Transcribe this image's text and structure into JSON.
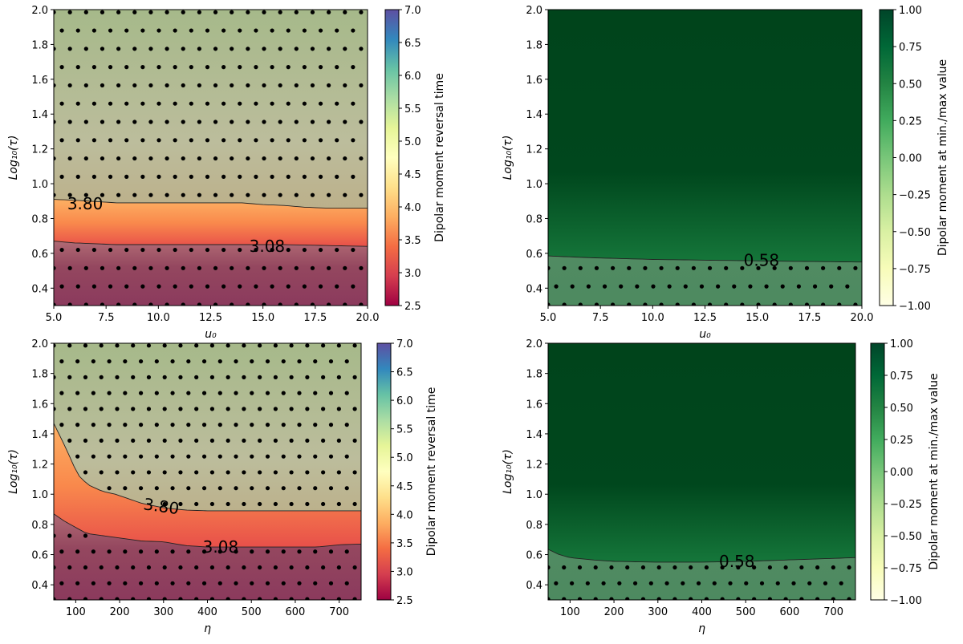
{
  "chart_data": [
    {
      "type": "heatmap",
      "subtype": "filled-contour-with-stippling",
      "xlabel": "u₀",
      "ylabel": "Log₁₀(τ)",
      "xlim": [
        5.0,
        20.0
      ],
      "ylim": [
        0.3,
        2.0
      ],
      "xticks": [
        "5.0",
        "7.5",
        "10.0",
        "12.5",
        "15.0",
        "17.5",
        "20.0"
      ],
      "xtick_values": [
        5.0,
        7.5,
        10.0,
        12.5,
        15.0,
        17.5,
        20.0
      ],
      "yticks": [
        "0.4",
        "0.6",
        "0.8",
        "1.0",
        "1.2",
        "1.4",
        "1.6",
        "1.8",
        "2.0"
      ],
      "ytick_values": [
        0.4,
        0.6,
        0.8,
        1.0,
        1.2,
        1.4,
        1.6,
        1.8,
        2.0
      ],
      "colorbar": {
        "label": "Dipolar moment reversal time",
        "range": [
          2.5,
          7.0
        ],
        "colormap": "Spectral",
        "ticks": [
          "2.5",
          "3.0",
          "3.5",
          "4.0",
          "4.5",
          "5.0",
          "5.5",
          "6.0",
          "6.5",
          "7.0"
        ],
        "tick_values": [
          2.5,
          3.0,
          3.5,
          4.0,
          4.5,
          5.0,
          5.5,
          6.0,
          6.5,
          7.0
        ]
      },
      "contours": [
        {
          "label": "3.80",
          "level": 3.8,
          "x": [
            5,
            6,
            8,
            10,
            12,
            14,
            15,
            16,
            17,
            18,
            19,
            20
          ],
          "y": [
            0.91,
            0.905,
            0.89,
            0.89,
            0.89,
            0.89,
            0.88,
            0.875,
            0.865,
            0.86,
            0.86,
            0.86
          ],
          "label_at": [
            6.5,
            0.885
          ]
        },
        {
          "label": "3.08",
          "level": 3.08,
          "x": [
            5,
            6,
            7,
            8,
            10,
            12,
            14,
            16,
            18,
            20
          ],
          "y": [
            0.67,
            0.66,
            0.655,
            0.65,
            0.65,
            0.65,
            0.65,
            0.65,
            0.645,
            0.64
          ],
          "label_at": [
            15.2,
            0.64
          ]
        }
      ],
      "stippling": "outside the 3.08–3.80 band"
    },
    {
      "type": "heatmap",
      "subtype": "filled-contour-with-stippling",
      "xlabel": "u₀",
      "ylabel": "Log₁₀(τ)",
      "xlim": [
        5.0,
        20.0
      ],
      "ylim": [
        0.3,
        2.0
      ],
      "xticks": [
        "5.0",
        "7.5",
        "10.0",
        "12.5",
        "15.0",
        "17.5",
        "20.0"
      ],
      "xtick_values": [
        5.0,
        7.5,
        10.0,
        12.5,
        15.0,
        17.5,
        20.0
      ],
      "yticks": [
        "0.4",
        "0.6",
        "0.8",
        "1.0",
        "1.2",
        "1.4",
        "1.6",
        "1.8",
        "2.0"
      ],
      "ytick_values": [
        0.4,
        0.6,
        0.8,
        1.0,
        1.2,
        1.4,
        1.6,
        1.8,
        2.0
      ],
      "colorbar": {
        "label": "Dipolar moment at min./max value",
        "range": [
          -1.0,
          1.0
        ],
        "colormap": "YlGn",
        "ticks": [
          "−1.00",
          "−0.75",
          "−0.50",
          "−0.25",
          "0.00",
          "0.25",
          "0.50",
          "0.75",
          "1.00"
        ],
        "tick_values": [
          -1.0,
          -0.75,
          -0.5,
          -0.25,
          0.0,
          0.25,
          0.5,
          0.75,
          1.0
        ]
      },
      "contours": [
        {
          "label": "0.58",
          "level": 0.58,
          "x": [
            5,
            7,
            10,
            13,
            16,
            20
          ],
          "y": [
            0.585,
            0.575,
            0.565,
            0.56,
            0.555,
            0.55
          ],
          "label_at": [
            15.2,
            0.56
          ]
        }
      ],
      "stippling": "below the 0.58 contour"
    },
    {
      "type": "heatmap",
      "subtype": "filled-contour-with-stippling",
      "xlabel": "η",
      "ylabel": "Log₁₀(τ)",
      "xlim": [
        50,
        750
      ],
      "ylim": [
        0.3,
        2.0
      ],
      "xticks": [
        "100",
        "200",
        "300",
        "400",
        "500",
        "600",
        "700"
      ],
      "xtick_values": [
        100,
        200,
        300,
        400,
        500,
        600,
        700
      ],
      "yticks": [
        "0.4",
        "0.6",
        "0.8",
        "1.0",
        "1.2",
        "1.4",
        "1.6",
        "1.8",
        "2.0"
      ],
      "ytick_values": [
        0.4,
        0.6,
        0.8,
        1.0,
        1.2,
        1.4,
        1.6,
        1.8,
        2.0
      ],
      "colorbar": {
        "label": "Dipolar moment reversal time",
        "range": [
          2.5,
          7.0
        ],
        "colormap": "Spectral",
        "ticks": [
          "2.5",
          "3.0",
          "3.5",
          "4.0",
          "4.5",
          "5.0",
          "5.5",
          "6.0",
          "6.5",
          "7.0"
        ],
        "tick_values": [
          2.5,
          3.0,
          3.5,
          4.0,
          4.5,
          5.0,
          5.5,
          6.0,
          6.5,
          7.0
        ]
      },
      "contours": [
        {
          "label": "3.80",
          "level": 3.8,
          "x": [
            50,
            65,
            80,
            95,
            110,
            130,
            160,
            190,
            220,
            250,
            300,
            350,
            400,
            500,
            600,
            700,
            750
          ],
          "y": [
            1.47,
            1.38,
            1.29,
            1.19,
            1.11,
            1.06,
            1.02,
            1.0,
            0.97,
            0.94,
            0.91,
            0.895,
            0.89,
            0.89,
            0.89,
            0.89,
            0.89
          ],
          "label_at": [
            295,
            0.92
          ]
        },
        {
          "label": "3.08",
          "level": 3.08,
          "x": [
            50,
            75,
            100,
            125,
            150,
            200,
            250,
            300,
            350,
            400,
            500,
            600,
            650,
            700,
            750
          ],
          "y": [
            0.87,
            0.82,
            0.78,
            0.74,
            0.73,
            0.71,
            0.69,
            0.685,
            0.66,
            0.65,
            0.65,
            0.65,
            0.65,
            0.665,
            0.67
          ],
          "label_at": [
            430,
            0.65
          ]
        }
      ],
      "stippling": "outside the 3.08–3.80 band"
    },
    {
      "type": "heatmap",
      "subtype": "filled-contour-with-stippling",
      "xlabel": "η",
      "ylabel": "Log₁₀(τ)",
      "xlim": [
        50,
        750
      ],
      "ylim": [
        0.3,
        2.0
      ],
      "xticks": [
        "100",
        "200",
        "300",
        "400",
        "500",
        "600",
        "700"
      ],
      "xtick_values": [
        100,
        200,
        300,
        400,
        500,
        600,
        700
      ],
      "yticks": [
        "0.4",
        "0.6",
        "0.8",
        "1.0",
        "1.2",
        "1.4",
        "1.6",
        "1.8",
        "2.0"
      ],
      "ytick_values": [
        0.4,
        0.6,
        0.8,
        1.0,
        1.2,
        1.4,
        1.6,
        1.8,
        2.0
      ],
      "colorbar": {
        "label": "Dipolar moment at min./max value",
        "range": [
          -1.0,
          1.0
        ],
        "colormap": "YlGn",
        "ticks": [
          "−1.00",
          "−0.75",
          "−0.50",
          "−0.25",
          "0.00",
          "0.25",
          "0.50",
          "0.75",
          "1.00"
        ],
        "tick_values": [
          -1.0,
          -0.75,
          -0.5,
          -0.25,
          0.0,
          0.25,
          0.5,
          0.75,
          1.0
        ]
      },
      "contours": [
        {
          "label": "0.58",
          "level": 0.58,
          "x": [
            50,
            75,
            100,
            150,
            200,
            300,
            400,
            500,
            600,
            700,
            750
          ],
          "y": [
            0.635,
            0.6,
            0.58,
            0.565,
            0.555,
            0.55,
            0.55,
            0.555,
            0.565,
            0.575,
            0.58
          ],
          "label_at": [
            480,
            0.555
          ]
        }
      ],
      "stippling": "below the 0.58 contour"
    }
  ]
}
